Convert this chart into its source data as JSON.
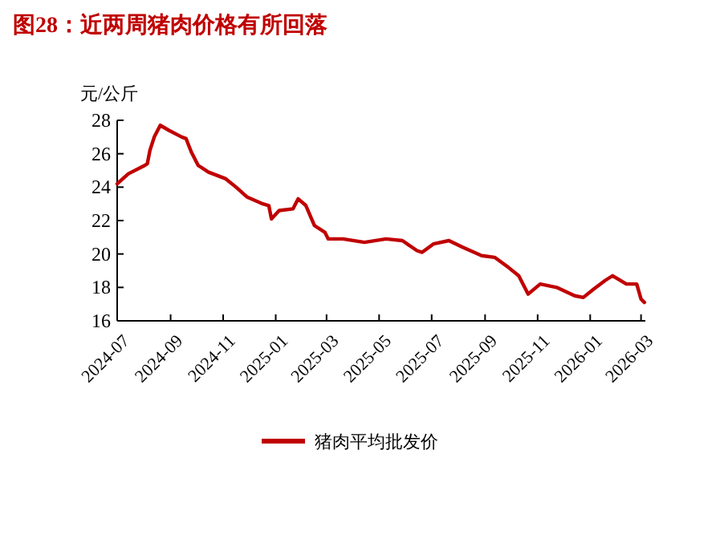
{
  "chart_data": {
    "type": "line",
    "title": "图28：近两周猪肉价格有所回落",
    "ylabel": "元/公斤",
    "x": [
      "2024-07-01",
      "2024-07-14",
      "2024-08-02",
      "2024-08-05",
      "2024-08-08",
      "2024-08-13",
      "2024-08-20",
      "2024-08-30",
      "2024-09-14",
      "2024-09-19",
      "2024-09-25",
      "2024-10-03",
      "2024-10-15",
      "2024-11-04",
      "2024-11-16",
      "2024-11-29",
      "2024-12-17",
      "2024-12-24",
      "2024-12-27",
      "2025-01-05",
      "2025-01-21",
      "2025-01-27",
      "2025-02-05",
      "2025-02-15",
      "2025-02-27",
      "2025-03-03",
      "2025-03-20",
      "2025-04-14",
      "2025-05-09",
      "2025-05-28",
      "2025-06-14",
      "2025-06-20",
      "2025-07-03",
      "2025-07-21",
      "2025-08-06",
      "2025-08-28",
      "2025-09-12",
      "2025-09-28",
      "2025-10-10",
      "2025-10-21",
      "2025-11-04",
      "2025-11-23",
      "2025-12-14",
      "2025-12-24",
      "2026-01-05",
      "2026-01-18",
      "2026-01-27",
      "2026-02-12",
      "2026-02-24",
      "2026-03-01",
      "2026-03-05"
    ],
    "series": [
      {
        "name": "猪肉平均批发价",
        "color": "#c00000",
        "values": [
          24.2,
          24.8,
          25.3,
          25.4,
          26.2,
          27.0,
          27.7,
          27.4,
          27.0,
          26.9,
          26.1,
          25.3,
          24.9,
          24.5,
          24.0,
          23.4,
          23.0,
          22.9,
          22.1,
          22.6,
          22.7,
          23.3,
          22.9,
          21.7,
          21.3,
          20.9,
          20.9,
          20.7,
          20.9,
          20.8,
          20.2,
          20.1,
          20.6,
          20.8,
          20.4,
          19.9,
          19.8,
          19.2,
          18.7,
          17.6,
          18.2,
          18.0,
          17.5,
          17.4,
          17.9,
          18.4,
          18.7,
          18.2,
          18.2,
          17.3,
          17.1
        ]
      }
    ],
    "xlim": [
      "2024-07-01",
      "2026-03-06"
    ],
    "xticks": [
      "2024-07",
      "2024-09",
      "2024-11",
      "2025-01",
      "2025-03",
      "2025-05",
      "2025-07",
      "2025-09",
      "2025-11",
      "2026-01",
      "2026-03"
    ],
    "ylim": [
      16,
      28
    ],
    "yticks": [
      16,
      18,
      20,
      22,
      24,
      26,
      28
    ],
    "grid": false,
    "legend": "bottom",
    "line_style": "solid",
    "marker": "none"
  }
}
